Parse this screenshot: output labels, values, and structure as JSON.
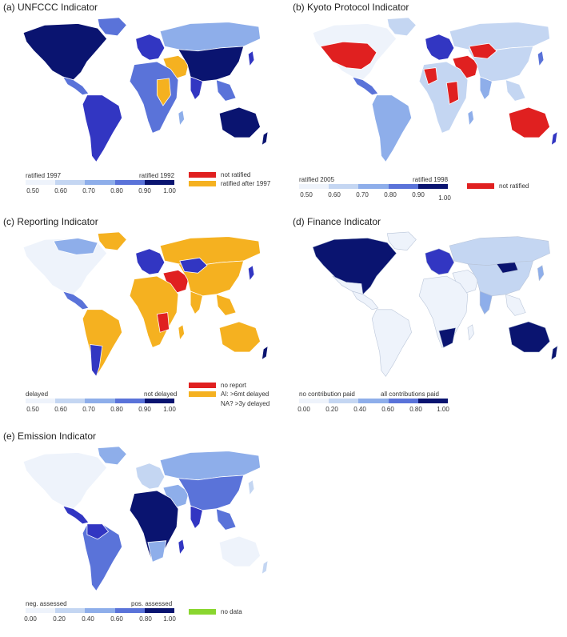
{
  "colors": {
    "scale": [
      "#eef3fb",
      "#c4d6f2",
      "#8eaeea",
      "#5a73d9",
      "#3236c2",
      "#0a1470"
    ],
    "red": "#e02020",
    "orange": "#f5b120",
    "green": "#8ad630"
  },
  "panels": {
    "a": {
      "title": "(a) UNFCCC Indicator",
      "legend_low": "ratified 1997",
      "legend_high": "ratified 1992",
      "ticks": [
        "0.50",
        "0.60",
        "0.70",
        "0.80",
        "0.90",
        "1.00"
      ],
      "categories": [
        {
          "label": "not ratified",
          "color": "red"
        },
        {
          "label": "ratified after 1997",
          "color": "orange"
        }
      ]
    },
    "b": {
      "title": "(b) Kyoto Protocol Indicator",
      "legend_low": "ratified 2005",
      "legend_high": "ratified 1998",
      "ticks": [
        "0.50",
        "0.60",
        "0.70",
        "0.80",
        "0.90",
        "1.00"
      ],
      "categories": [
        {
          "label": "not ratified",
          "color": "red"
        }
      ]
    },
    "c": {
      "title": "(c) Reporting Indicator",
      "legend_low": "delayed",
      "legend_high": "not delayed",
      "ticks": [
        "0.50",
        "0.60",
        "0.70",
        "0.80",
        "0.90",
        "1.00"
      ],
      "categories": [
        {
          "label": "no report",
          "color": "red"
        },
        {
          "label": "AI: >6mt delayed",
          "color": "orange"
        },
        {
          "label": "NA? >3y delayed",
          "color": "none"
        }
      ]
    },
    "d": {
      "title": "(d) Finance Indicator",
      "legend_low": "no contribution paid",
      "legend_high": "all contributions paid",
      "ticks": [
        "0.00",
        "0.20",
        "0.40",
        "0.60",
        "0.80",
        "1.00"
      ],
      "categories": []
    },
    "e": {
      "title": "(e) Emission Indicator",
      "legend_low": "neg. assessed",
      "legend_high": "pos. assessed",
      "ticks": [
        "0.00",
        "0.20",
        "0.40",
        "0.60",
        "0.80",
        "1.00"
      ],
      "categories": [
        {
          "label": "no data",
          "color": "green"
        }
      ]
    }
  }
}
